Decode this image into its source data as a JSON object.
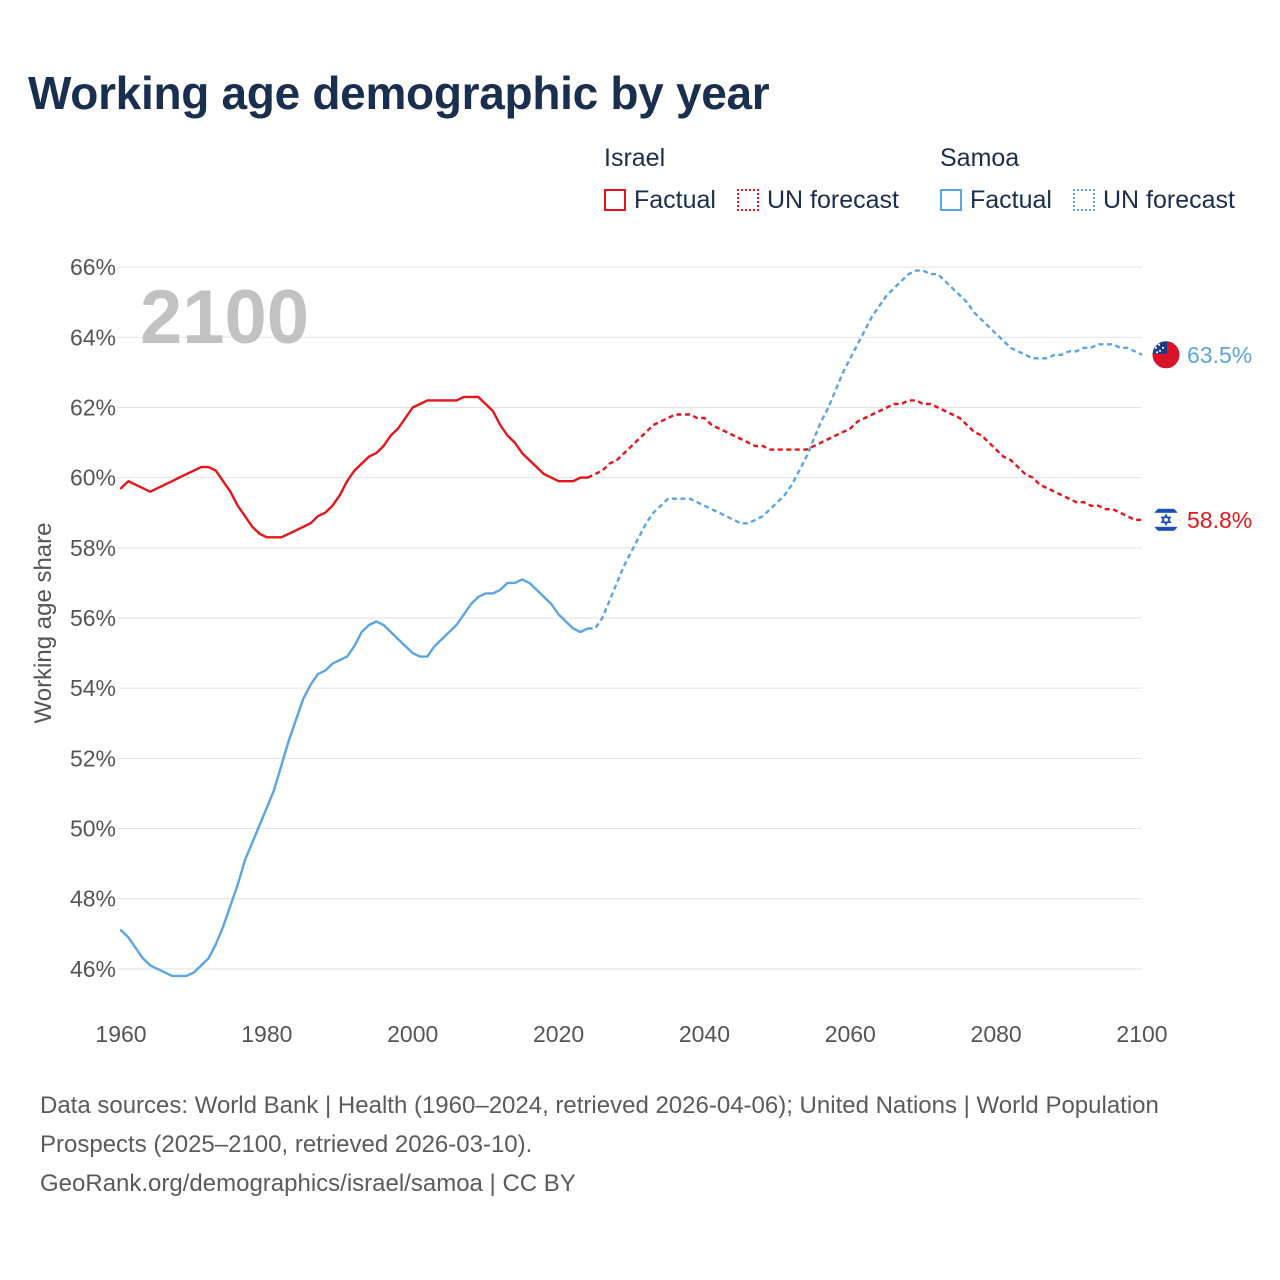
{
  "title": "Working age demographic by year",
  "legend": {
    "groups": [
      {
        "name": "Israel",
        "factual_label": "Factual",
        "forecast_label": "UN forecast",
        "color": "#e8141a"
      },
      {
        "name": "Samoa",
        "factual_label": "Factual",
        "forecast_label": "UN forecast",
        "color": "#5aa5e5"
      }
    ]
  },
  "chart_data": {
    "type": "line",
    "title": "Working age demographic by year",
    "year_watermark": "2100",
    "xlabel": "",
    "ylabel": "Working age share",
    "xlim": [
      1960,
      2100
    ],
    "ylim": [
      44.8,
      67.2
    ],
    "x_ticks": [
      1960,
      1980,
      2000,
      2020,
      2040,
      2060,
      2080,
      2100
    ],
    "x_tick_labels": [
      "1960",
      "1980",
      "2000",
      "2020",
      "2040",
      "2060",
      "2080",
      "2100"
    ],
    "y_ticks": [
      46,
      48,
      50,
      52,
      54,
      56,
      58,
      60,
      62,
      64,
      66
    ],
    "y_tick_labels": [
      "46%",
      "48%",
      "50%",
      "52%",
      "54%",
      "56%",
      "58%",
      "60%",
      "62%",
      "64%",
      "66%"
    ],
    "grid": true,
    "factual_range": [
      1960,
      2024
    ],
    "forecast_range": [
      2025,
      2100
    ],
    "series": [
      {
        "name": "Israel",
        "color": "#e8141a",
        "flag_icon": "israel-flag-icon",
        "end_label": "58.8%",
        "factual": {
          "x": [
            1960,
            1961,
            1962,
            1963,
            1964,
            1965,
            1966,
            1967,
            1968,
            1969,
            1970,
            1971,
            1972,
            1973,
            1974,
            1975,
            1976,
            1977,
            1978,
            1979,
            1980,
            1981,
            1982,
            1983,
            1984,
            1985,
            1986,
            1987,
            1988,
            1989,
            1990,
            1991,
            1992,
            1993,
            1994,
            1995,
            1996,
            1997,
            1998,
            1999,
            2000,
            2001,
            2002,
            2003,
            2004,
            2005,
            2006,
            2007,
            2008,
            2009,
            2010,
            2011,
            2012,
            2013,
            2014,
            2015,
            2016,
            2017,
            2018,
            2019,
            2020,
            2021,
            2022,
            2023,
            2024
          ],
          "y": [
            59.7,
            59.9,
            59.8,
            59.7,
            59.6,
            59.7,
            59.8,
            59.9,
            60.0,
            60.1,
            60.2,
            60.3,
            60.3,
            60.2,
            59.9,
            59.6,
            59.2,
            58.9,
            58.6,
            58.4,
            58.3,
            58.3,
            58.3,
            58.4,
            58.5,
            58.6,
            58.7,
            58.9,
            59.0,
            59.2,
            59.5,
            59.9,
            60.2,
            60.4,
            60.6,
            60.7,
            60.9,
            61.2,
            61.4,
            61.7,
            62.0,
            62.1,
            62.2,
            62.2,
            62.2,
            62.2,
            62.2,
            62.3,
            62.3,
            62.3,
            62.1,
            61.9,
            61.5,
            61.2,
            61.0,
            60.7,
            60.5,
            60.3,
            60.1,
            60.0,
            59.9,
            59.9,
            59.9,
            60.0,
            60.0
          ]
        },
        "forecast": {
          "x": [
            2024,
            2025,
            2026,
            2027,
            2028,
            2029,
            2030,
            2031,
            2032,
            2033,
            2034,
            2035,
            2036,
            2037,
            2038,
            2039,
            2040,
            2041,
            2042,
            2043,
            2044,
            2045,
            2046,
            2047,
            2048,
            2049,
            2050,
            2051,
            2052,
            2053,
            2054,
            2055,
            2056,
            2057,
            2058,
            2059,
            2060,
            2061,
            2062,
            2063,
            2064,
            2065,
            2066,
            2067,
            2068,
            2069,
            2070,
            2071,
            2072,
            2073,
            2074,
            2075,
            2076,
            2077,
            2078,
            2079,
            2080,
            2081,
            2082,
            2083,
            2084,
            2085,
            2086,
            2087,
            2088,
            2089,
            2090,
            2091,
            2092,
            2093,
            2094,
            2095,
            2096,
            2097,
            2098,
            2099,
            2100
          ],
          "y": [
            60.0,
            60.1,
            60.2,
            60.4,
            60.5,
            60.7,
            60.9,
            61.1,
            61.3,
            61.5,
            61.6,
            61.7,
            61.8,
            61.8,
            61.8,
            61.7,
            61.7,
            61.5,
            61.4,
            61.3,
            61.2,
            61.1,
            61.0,
            60.9,
            60.9,
            60.8,
            60.8,
            60.8,
            60.8,
            60.8,
            60.8,
            60.9,
            61.0,
            61.1,
            61.2,
            61.3,
            61.4,
            61.6,
            61.7,
            61.8,
            61.9,
            62.0,
            62.1,
            62.1,
            62.2,
            62.2,
            62.1,
            62.1,
            62.0,
            61.9,
            61.8,
            61.7,
            61.5,
            61.3,
            61.2,
            61.0,
            60.8,
            60.6,
            60.5,
            60.3,
            60.1,
            60.0,
            59.8,
            59.7,
            59.6,
            59.5,
            59.4,
            59.3,
            59.3,
            59.2,
            59.2,
            59.1,
            59.1,
            59.0,
            58.9,
            58.8,
            58.8
          ]
        }
      },
      {
        "name": "Samoa",
        "color": "#5aa5e5",
        "flag_icon": "samoa-flag-icon",
        "end_label": "63.5%",
        "factual": {
          "x": [
            1960,
            1961,
            1962,
            1963,
            1964,
            1965,
            1966,
            1967,
            1968,
            1969,
            1970,
            1971,
            1972,
            1973,
            1974,
            1975,
            1976,
            1977,
            1978,
            1979,
            1980,
            1981,
            1982,
            1983,
            1984,
            1985,
            1986,
            1987,
            1988,
            1989,
            1990,
            1991,
            1992,
            1993,
            1994,
            1995,
            1996,
            1997,
            1998,
            1999,
            2000,
            2001,
            2002,
            2003,
            2004,
            2005,
            2006,
            2007,
            2008,
            2009,
            2010,
            2011,
            2012,
            2013,
            2014,
            2015,
            2016,
            2017,
            2018,
            2019,
            2020,
            2021,
            2022,
            2023,
            2024
          ],
          "y": [
            47.1,
            46.9,
            46.6,
            46.3,
            46.1,
            46.0,
            45.9,
            45.8,
            45.8,
            45.8,
            45.9,
            46.1,
            46.3,
            46.7,
            47.2,
            47.8,
            48.4,
            49.1,
            49.6,
            50.1,
            50.6,
            51.1,
            51.8,
            52.5,
            53.1,
            53.7,
            54.1,
            54.4,
            54.5,
            54.7,
            54.8,
            54.9,
            55.2,
            55.6,
            55.8,
            55.9,
            55.8,
            55.6,
            55.4,
            55.2,
            55.0,
            54.9,
            54.9,
            55.2,
            55.4,
            55.6,
            55.8,
            56.1,
            56.4,
            56.6,
            56.7,
            56.7,
            56.8,
            57.0,
            57.0,
            57.1,
            57.0,
            56.8,
            56.6,
            56.4,
            56.1,
            55.9,
            55.7,
            55.6,
            55.7
          ]
        },
        "forecast": {
          "x": [
            2024,
            2025,
            2026,
            2027,
            2028,
            2029,
            2030,
            2031,
            2032,
            2033,
            2034,
            2035,
            2036,
            2037,
            2038,
            2039,
            2040,
            2041,
            2042,
            2043,
            2044,
            2045,
            2046,
            2047,
            2048,
            2049,
            2050,
            2051,
            2052,
            2053,
            2054,
            2055,
            2056,
            2057,
            2058,
            2059,
            2060,
            2061,
            2062,
            2063,
            2064,
            2065,
            2066,
            2067,
            2068,
            2069,
            2070,
            2071,
            2072,
            2073,
            2074,
            2075,
            2076,
            2077,
            2078,
            2079,
            2080,
            2081,
            2082,
            2083,
            2084,
            2085,
            2086,
            2087,
            2088,
            2089,
            2090,
            2091,
            2092,
            2093,
            2094,
            2095,
            2096,
            2097,
            2098,
            2099,
            2100
          ],
          "y": [
            55.7,
            55.7,
            56.0,
            56.5,
            57.0,
            57.5,
            57.9,
            58.3,
            58.7,
            59.0,
            59.2,
            59.4,
            59.4,
            59.4,
            59.4,
            59.3,
            59.2,
            59.1,
            59.0,
            58.9,
            58.8,
            58.7,
            58.7,
            58.8,
            58.9,
            59.1,
            59.3,
            59.5,
            59.8,
            60.2,
            60.6,
            61.1,
            61.6,
            62.0,
            62.5,
            63.0,
            63.4,
            63.8,
            64.2,
            64.6,
            64.9,
            65.2,
            65.4,
            65.6,
            65.8,
            65.9,
            65.9,
            65.8,
            65.8,
            65.6,
            65.4,
            65.2,
            65.0,
            64.7,
            64.5,
            64.3,
            64.1,
            63.9,
            63.7,
            63.6,
            63.5,
            63.4,
            63.4,
            63.4,
            63.5,
            63.5,
            63.6,
            63.6,
            63.7,
            63.7,
            63.8,
            63.8,
            63.8,
            63.7,
            63.7,
            63.6,
            63.5
          ]
        }
      }
    ]
  },
  "sources": {
    "line1": "Data sources: World Bank | Health (1960–2024, retrieved 2026-04-06); United Nations | World Population Prospects (2025–2100, retrieved 2026-03-10).",
    "line2": "GeoRank.org/demographics/israel/samoa | CC BY"
  }
}
